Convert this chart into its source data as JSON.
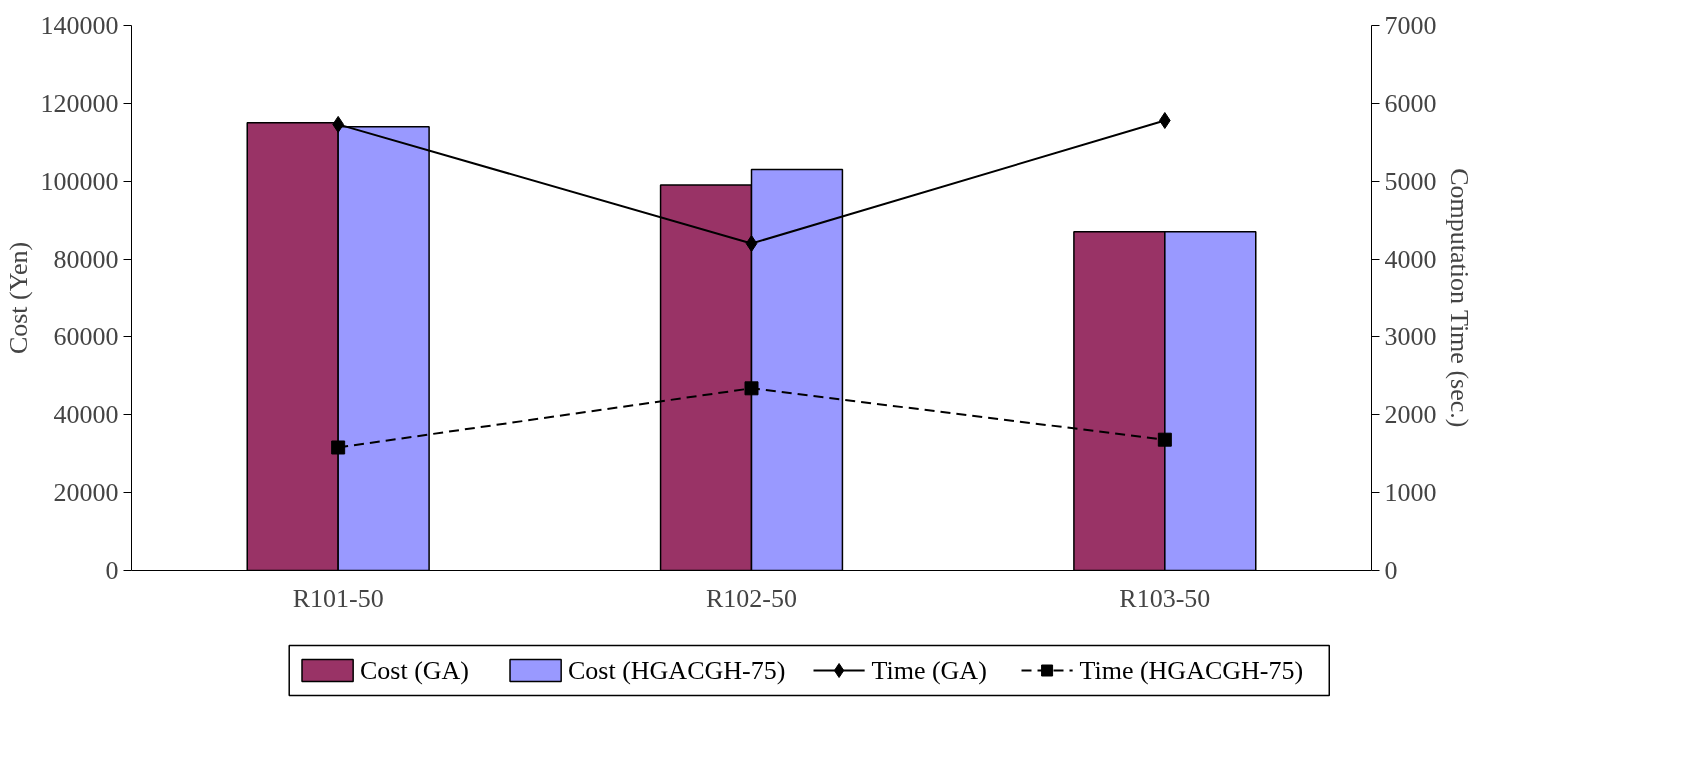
{
  "chart_data": {
    "type": "bar",
    "categories": [
      "R101-50",
      "R102-50",
      "R103-50"
    ],
    "ylabel": "Cost (Yen)",
    "y2label": "Computation Time (sec.)",
    "ylim": [
      0,
      140000
    ],
    "yticks": [
      0,
      20000,
      40000,
      60000,
      80000,
      100000,
      120000,
      140000
    ],
    "y2lim": [
      0,
      7000
    ],
    "y2ticks": [
      0,
      1000,
      2000,
      3000,
      4000,
      5000,
      6000,
      7000
    ],
    "legend": "bottom",
    "grid": false,
    "series": [
      {
        "name": "Cost (GA)",
        "color": "#993366",
        "values": [
          115000,
          99000,
          87000
        ]
      },
      {
        "name": "Cost (HGACGH-75)",
        "color": "#9999ff",
        "values": [
          114000,
          103000,
          87000
        ]
      },
      {
        "name": "Time (GA)",
        "type": "line",
        "axis": "y2",
        "color": "#000000",
        "marker": "diamond",
        "line_style": "solid",
        "values": [
          5730,
          4200,
          5780
        ]
      },
      {
        "name": "Time (HGACGH-75)",
        "type": "line",
        "axis": "y2",
        "color": "#000000",
        "marker": "square",
        "line_style": "dashed",
        "values": [
          1580,
          2340,
          1680
        ]
      }
    ]
  }
}
